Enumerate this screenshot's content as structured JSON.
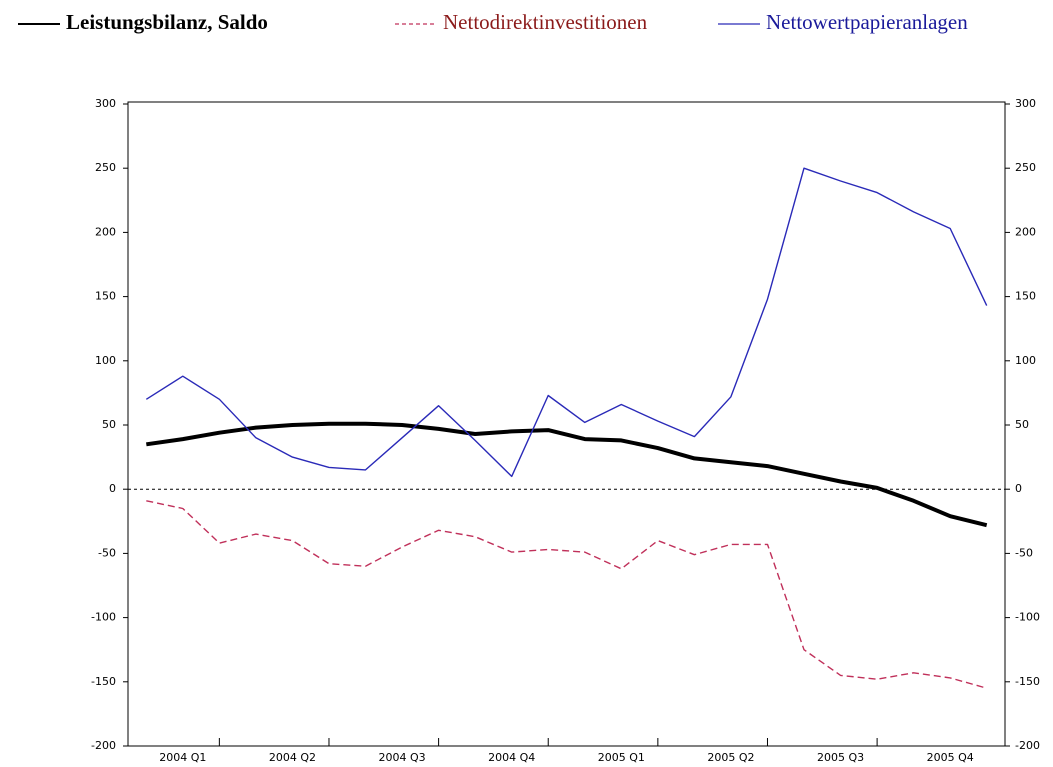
{
  "chart_data": {
    "type": "line",
    "categories": [
      null,
      "2004 Q1",
      null,
      null,
      "2004 Q2",
      null,
      null,
      "2004 Q3",
      null,
      null,
      "2004 Q4",
      null,
      null,
      "2005 Q1",
      null,
      null,
      "2005 Q2",
      null,
      null,
      "2005 Q3",
      null,
      null,
      "2005 Q4",
      null
    ],
    "series": [
      {
        "name": "Leistungsbilanz, Saldo",
        "color": "#000000",
        "dashed": false,
        "bold": true,
        "values": [
          35,
          39,
          44,
          48,
          50,
          51,
          51,
          50,
          47,
          43,
          45,
          46,
          39,
          38,
          32,
          24,
          21,
          18,
          12,
          6,
          1,
          -9,
          -21,
          -28
        ]
      },
      {
        "name": "Nettodirektinvestitionen",
        "color": "#c0305a",
        "dashed": true,
        "bold": false,
        "values": [
          -9,
          -15,
          -42,
          -35,
          -40,
          -58,
          -60,
          -45,
          -32,
          -37,
          -49,
          -47,
          -49,
          -62,
          -40,
          -51,
          -43,
          -43,
          -125,
          -145,
          -148,
          -143,
          -147,
          -155
        ]
      },
      {
        "name": "Nettowertpapieranlagen",
        "color": "#2a2ab8",
        "dashed": false,
        "bold": false,
        "values": [
          70,
          88,
          70,
          40,
          25,
          17,
          15,
          40,
          65,
          38,
          10,
          73,
          52,
          66,
          53,
          41,
          72,
          148,
          250,
          240,
          231,
          216,
          203,
          143
        ]
      }
    ],
    "ylim": [
      -200,
      300
    ],
    "yticks": [
      -200,
      -150,
      -100,
      -50,
      0,
      50,
      100,
      150,
      200,
      250,
      300
    ],
    "y2lim": [
      -200,
      300
    ],
    "y2ticks": [
      -200,
      -150,
      -100,
      -50,
      0,
      50,
      100,
      150,
      200,
      250,
      300
    ],
    "zero_line": true,
    "legend": "top"
  }
}
